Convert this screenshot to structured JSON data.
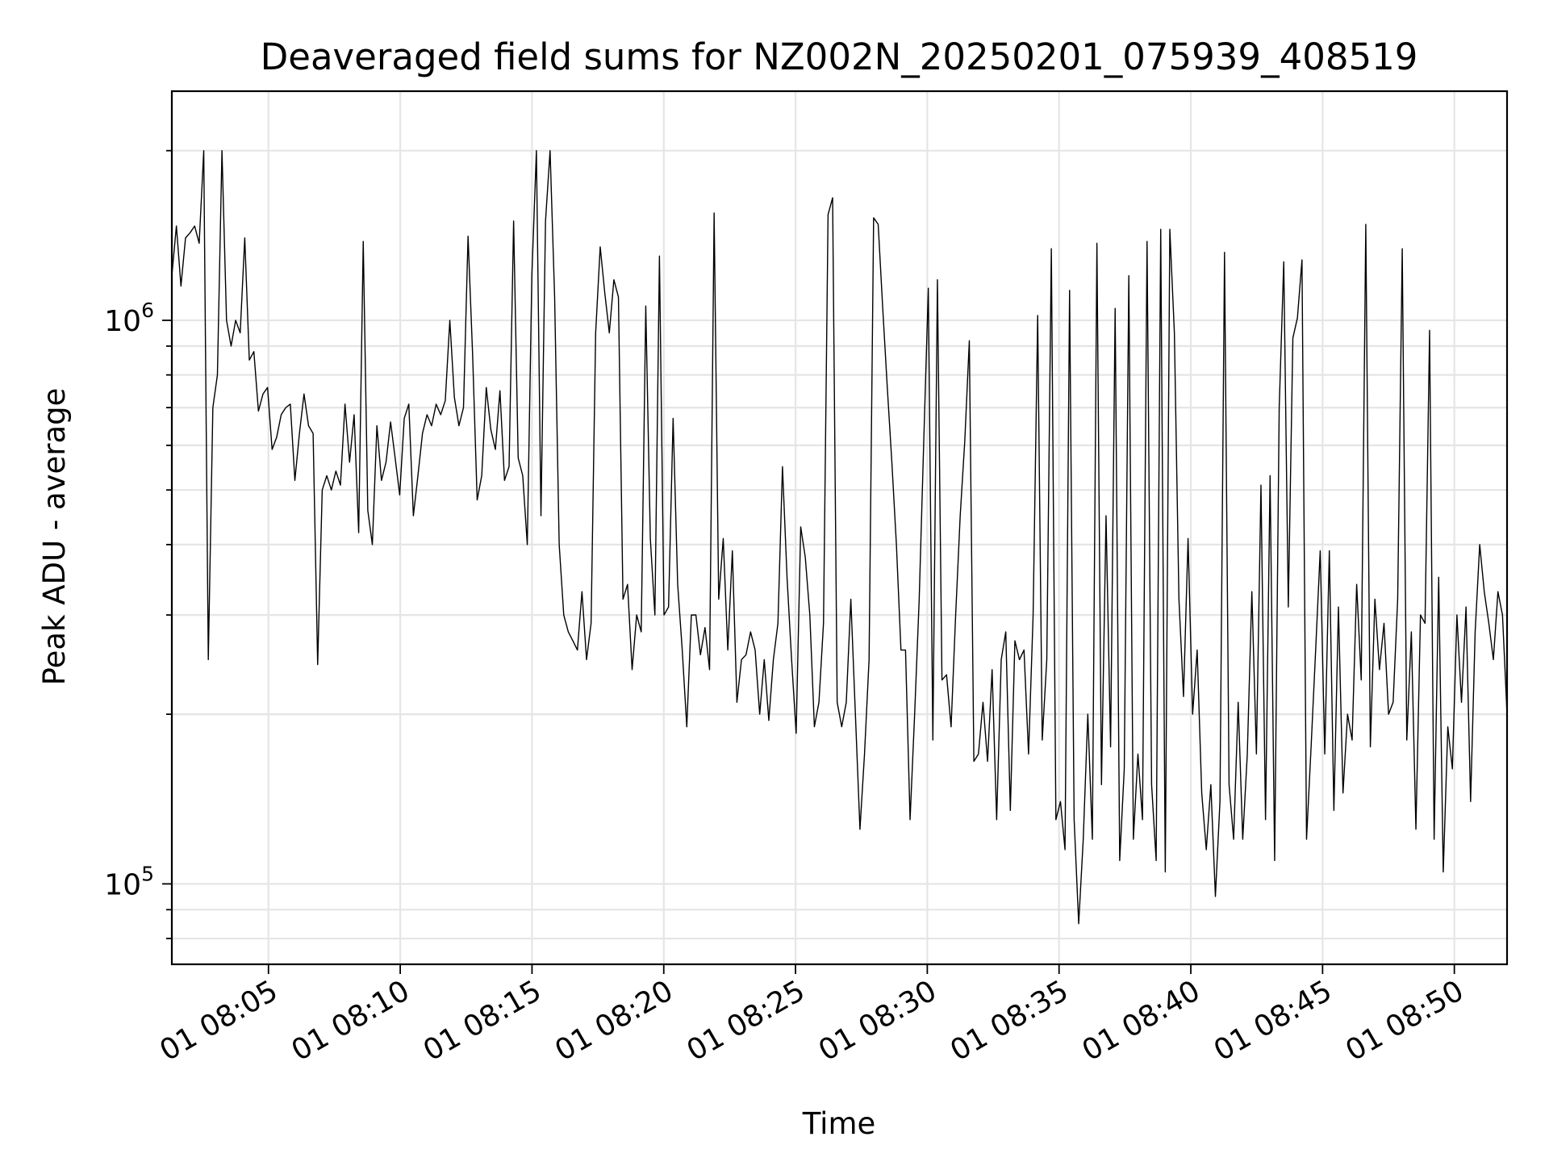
{
  "chart_data": {
    "type": "line",
    "title": "Deaveraged field sums for NZ002N_20250201_075939_408519",
    "xlabel": "Time",
    "ylabel": "Peak ADU - average",
    "yscale": "log",
    "ylim": [
      72000,
      2550000
    ],
    "xlim": [
      "2025-02-01 08:01:20",
      "2025-02-01 08:52:00"
    ],
    "grid": true,
    "x_ticks": [
      {
        "value": "2025-02-01 08:05:00",
        "label": "01 08:05"
      },
      {
        "value": "2025-02-01 08:10:00",
        "label": "01 08:10"
      },
      {
        "value": "2025-02-01 08:15:00",
        "label": "01 08:15"
      },
      {
        "value": "2025-02-01 08:20:00",
        "label": "01 08:20"
      },
      {
        "value": "2025-02-01 08:25:00",
        "label": "01 08:25"
      },
      {
        "value": "2025-02-01 08:30:00",
        "label": "01 08:30"
      },
      {
        "value": "2025-02-01 08:35:00",
        "label": "01 08:35"
      },
      {
        "value": "2025-02-01 08:40:00",
        "label": "01 08:40"
      },
      {
        "value": "2025-02-01 08:45:00",
        "label": "01 08:45"
      },
      {
        "value": "2025-02-01 08:50:00",
        "label": "01 08:50"
      }
    ],
    "y_ticks_major": [
      {
        "value": 100000,
        "base": "10",
        "exp": "5"
      },
      {
        "value": 1000000,
        "base": "10",
        "exp": "6"
      }
    ],
    "y_ticks_minor": [
      80000,
      90000,
      200000,
      300000,
      400000,
      500000,
      600000,
      700000,
      800000,
      900000,
      2000000
    ],
    "series": [
      {
        "color": "#000000",
        "x_start": "2025-02-01 08:01:20",
        "x_end": "2025-02-01 08:52:00",
        "values": [
          1200000,
          1470000,
          1150000,
          1400000,
          1430000,
          1470000,
          1370000,
          2000000,
          250000,
          700000,
          800000,
          2000000,
          1000000,
          900000,
          1000000,
          950000,
          1400000,
          850000,
          880000,
          690000,
          740000,
          760000,
          590000,
          620000,
          680000,
          700000,
          710000,
          520000,
          630000,
          740000,
          650000,
          630000,
          245000,
          500000,
          530000,
          500000,
          540000,
          510000,
          710000,
          560000,
          680000,
          420000,
          1380000,
          460000,
          400000,
          650000,
          520000,
          560000,
          660000,
          570000,
          490000,
          670000,
          710000,
          450000,
          530000,
          630000,
          680000,
          650000,
          710000,
          680000,
          720000,
          1000000,
          730000,
          650000,
          700000,
          1410000,
          870000,
          480000,
          530000,
          760000,
          640000,
          590000,
          750000,
          520000,
          550000,
          1500000,
          570000,
          530000,
          400000,
          1200000,
          2000000,
          450000,
          1500000,
          2000000,
          1100000,
          400000,
          300000,
          280000,
          270000,
          260000,
          330000,
          250000,
          290000,
          950000,
          1350000,
          1120000,
          950000,
          1180000,
          1100000,
          320000,
          340000,
          240000,
          300000,
          280000,
          1060000,
          410000,
          300000,
          1300000,
          300000,
          310000,
          670000,
          340000,
          260000,
          190000,
          300000,
          300000,
          255000,
          285000,
          240000,
          1550000,
          320000,
          410000,
          260000,
          390000,
          210000,
          250000,
          255000,
          280000,
          260000,
          200000,
          250000,
          195000,
          250000,
          290000,
          550000,
          350000,
          250000,
          185000,
          430000,
          380000,
          300000,
          190000,
          210000,
          290000,
          1540000,
          1650000,
          210000,
          190000,
          210000,
          320000,
          200000,
          125000,
          170000,
          250000,
          1520000,
          1480000,
          1050000,
          760000,
          560000,
          400000,
          260000,
          260000,
          130000,
          200000,
          320000,
          610000,
          1140000,
          180000,
          1180000,
          230000,
          235000,
          190000,
          300000,
          450000,
          610000,
          920000,
          165000,
          170000,
          210000,
          165000,
          240000,
          130000,
          250000,
          280000,
          135000,
          270000,
          250000,
          260000,
          170000,
          300000,
          1020000,
          180000,
          250000,
          1340000,
          130000,
          140000,
          115000,
          1130000,
          130000,
          85000,
          120000,
          200000,
          120000,
          1370000,
          150000,
          450000,
          175000,
          1050000,
          110000,
          160000,
          1200000,
          120000,
          170000,
          130000,
          1380000,
          150000,
          110000,
          1450000,
          105000,
          1450000,
          950000,
          320000,
          215000,
          410000,
          200000,
          260000,
          145000,
          115000,
          150000,
          95000,
          140000,
          1320000,
          150000,
          120000,
          210000,
          120000,
          170000,
          330000,
          170000,
          510000,
          130000,
          530000,
          110000,
          700000,
          1270000,
          310000,
          930000,
          1010000,
          1280000,
          120000,
          175000,
          260000,
          390000,
          170000,
          390000,
          135000,
          310000,
          145000,
          200000,
          180000,
          340000,
          230000,
          1480000,
          175000,
          320000,
          240000,
          290000,
          200000,
          210000,
          320000,
          1340000,
          180000,
          280000,
          125000,
          300000,
          290000,
          960000,
          120000,
          350000,
          105000,
          190000,
          160000,
          300000,
          210000,
          310000,
          140000,
          280000,
          400000,
          330000,
          290000,
          250000,
          330000,
          300000,
          200000
        ]
      }
    ]
  }
}
